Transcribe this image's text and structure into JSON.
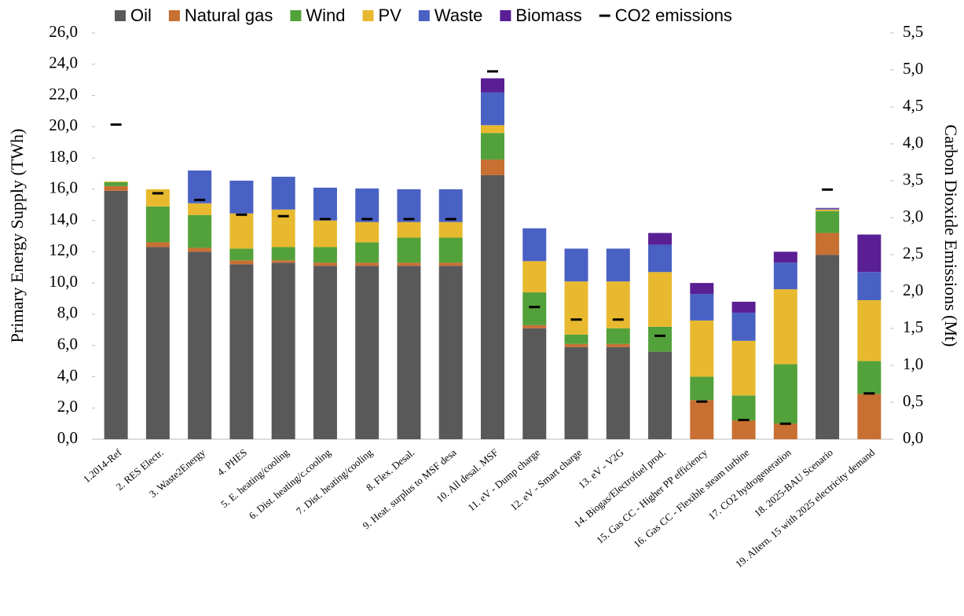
{
  "chart_data": {
    "type": "stacked-bar",
    "ylabel": "Primary Energy Supply (TWh)",
    "y2label": "Carbon Dioxide Emissions (Mt)",
    "legend": "top",
    "categories": [
      "1.2014-Ref",
      "2. RES Electr.",
      "3. Waste2Energy",
      "4. PHES",
      "5. E. heating/cooling",
      "6. Dist. heating/c.cooling",
      "7. Dist. heating/cooling",
      "8. Flex. Desal.",
      "9. Heat. surplus to MSF desa",
      "10. All desal. MSF",
      "11. eV - Dump charge",
      "12. eV - Smart charge",
      "13. eV - V2G",
      "14. Biogas/Electrofuel prod.",
      "15. Gas CC - Higher PP efficiency",
      "16. Gas CC - Flexible steam turbine",
      "17. CO2 hydrogeneration",
      "18. 2025-BAU Scenario",
      "19. Altern. 15 with 2025 electricity demand"
    ],
    "series": [
      {
        "name": "Oil",
        "color": "#595959",
        "values": [
          15.9,
          12.3,
          12.0,
          11.2,
          11.3,
          11.1,
          11.1,
          11.1,
          11.1,
          16.9,
          7.1,
          5.9,
          5.9,
          5.6,
          0,
          0,
          0,
          11.8,
          0
        ]
      },
      {
        "name": "Natural gas",
        "color": "#c86f32",
        "values": [
          0.3,
          0.3,
          0.25,
          0.25,
          0.15,
          0.2,
          0.2,
          0.2,
          0.2,
          1.0,
          0.2,
          0.2,
          0.2,
          0,
          2.5,
          1.2,
          1.0,
          1.4,
          2.9
        ]
      },
      {
        "name": "Wind",
        "color": "#53a13a",
        "values": [
          0.25,
          2.3,
          2.1,
          0.75,
          0.85,
          1.0,
          1.3,
          1.6,
          1.6,
          1.7,
          2.1,
          0.6,
          1.0,
          1.6,
          1.5,
          1.6,
          3.8,
          1.4,
          2.1
        ]
      },
      {
        "name": "PV",
        "color": "#e8b92f",
        "values": [
          0.05,
          1.1,
          0.75,
          2.25,
          2.4,
          1.7,
          1.3,
          1.0,
          1.0,
          0.5,
          2.0,
          3.4,
          3.0,
          3.5,
          3.6,
          3.5,
          4.8,
          0.1,
          3.9
        ]
      },
      {
        "name": "Waste",
        "color": "#4a61c4",
        "values": [
          0,
          0,
          2.1,
          2.1,
          2.1,
          2.1,
          2.15,
          2.1,
          2.1,
          2.1,
          2.1,
          2.1,
          2.1,
          1.75,
          1.7,
          1.8,
          1.7,
          0.05,
          1.8
        ]
      },
      {
        "name": "Biomass",
        "color": "#5a1f94",
        "values": [
          0,
          0,
          0,
          0,
          0,
          0,
          0,
          0,
          0,
          0.9,
          0,
          0,
          0,
          0.75,
          0.7,
          0.7,
          0.7,
          0.05,
          2.4
        ]
      },
      {
        "name": "CO2 emissions",
        "color": "#000000",
        "axis": "y2",
        "values": [
          4.26,
          3.33,
          3.24,
          3.04,
          3.02,
          2.98,
          2.98,
          2.98,
          2.98,
          4.98,
          1.79,
          1.62,
          1.62,
          1.4,
          0.51,
          0.26,
          0.21,
          3.38,
          0.62
        ]
      }
    ],
    "ylim": [
      0,
      26
    ],
    "yticks": [
      {
        "value": 0,
        "label": "0,0"
      },
      {
        "value": 2,
        "label": "2,0"
      },
      {
        "value": 4,
        "label": "4,0"
      },
      {
        "value": 6,
        "label": "6,0"
      },
      {
        "value": 8,
        "label": "8,0"
      },
      {
        "value": 10,
        "label": "10,0"
      },
      {
        "value": 12,
        "label": "12,0"
      },
      {
        "value": 14,
        "label": "14,0"
      },
      {
        "value": 16,
        "label": "16,0"
      },
      {
        "value": 18,
        "label": "18,0"
      },
      {
        "value": 20,
        "label": "20,0"
      },
      {
        "value": 22,
        "label": "22,0"
      },
      {
        "value": 24,
        "label": "24,0"
      },
      {
        "value": 26,
        "label": "26,0"
      }
    ],
    "y2lim": [
      0,
      5.5
    ],
    "y2ticks": [
      {
        "value": 0,
        "label": "0,0"
      },
      {
        "value": 0.5,
        "label": "0,5"
      },
      {
        "value": 1,
        "label": "1,0"
      },
      {
        "value": 1.5,
        "label": "1,5"
      },
      {
        "value": 2,
        "label": "2,0"
      },
      {
        "value": 2.5,
        "label": "2,5"
      },
      {
        "value": 3,
        "label": "3,0"
      },
      {
        "value": 3.5,
        "label": "3,5"
      },
      {
        "value": 4,
        "label": "4,0"
      },
      {
        "value": 4.5,
        "label": "4,5"
      },
      {
        "value": 5,
        "label": "5,0"
      },
      {
        "value": 5.5,
        "label": "5,5"
      }
    ]
  }
}
